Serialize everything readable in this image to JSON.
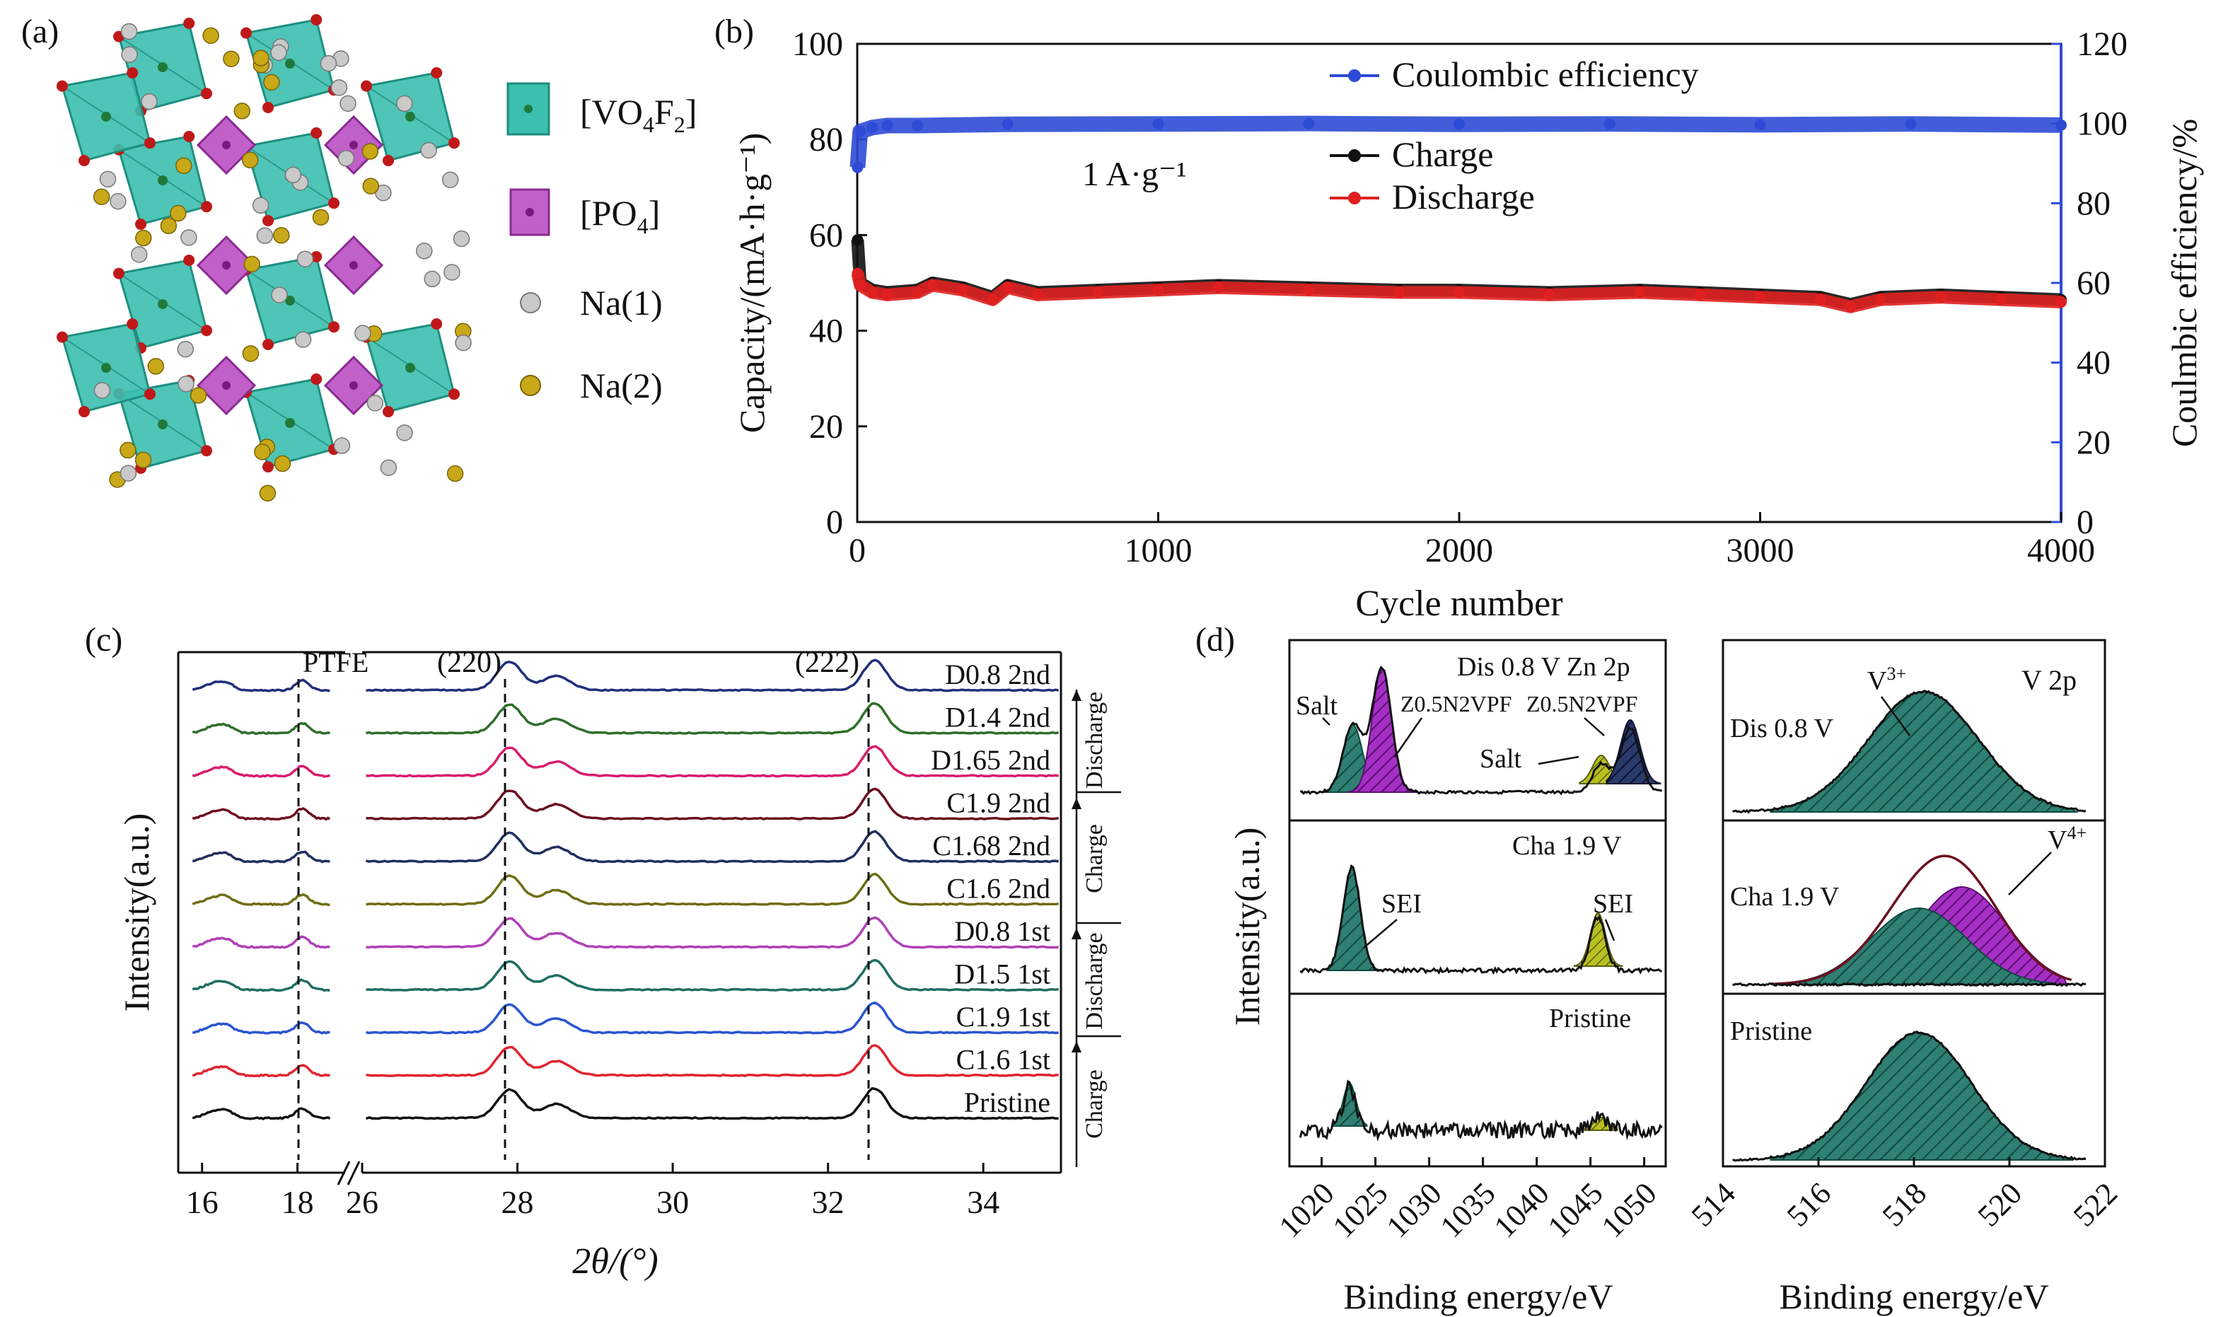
{
  "panels": {
    "a": "(a)",
    "b": "(b)",
    "c": "(c)",
    "d": "(d)"
  },
  "panel_a": {
    "legend": [
      {
        "label_main": "[VO",
        "sub1": "4",
        "mid": "F",
        "sub2": "2",
        "end": "]",
        "color": "#3bbfae"
      },
      {
        "label_main": "[PO",
        "sub1": "4",
        "mid": "",
        "sub2": "",
        "end": "]",
        "color": "#c060c8"
      },
      {
        "label_main": "Na(1)",
        "color": "#bdbdbd"
      },
      {
        "label_main": "Na(2)",
        "color": "#c8a818"
      }
    ]
  },
  "chart_data": [
    {
      "id": "b",
      "type": "line",
      "xlabel": "Cycle number",
      "ylabel_left": "Capacity/(mA·h·g⁻¹)",
      "ylabel_right": "Coulmbic efficiency/%",
      "xlim": [
        0,
        4000
      ],
      "ylim_left": [
        0,
        100
      ],
      "ylim_right": [
        0,
        120
      ],
      "xticks": [
        "0",
        "1000",
        "2000",
        "3000",
        "4000"
      ],
      "yticks_left": [
        "0",
        "20",
        "40",
        "60",
        "80",
        "100"
      ],
      "yticks_right": [
        "0",
        "20",
        "40",
        "60",
        "80",
        "100",
        "120"
      ],
      "annotation": "1 A·g⁻¹",
      "legend": [
        "Coulombic efficiency",
        "Charge",
        "Discharge"
      ],
      "colors": {
        "ce": "#2e4bd6",
        "charge": "#111111",
        "discharge": "#e02020"
      },
      "series": [
        {
          "name": "Coulombic efficiency",
          "axis": "right",
          "x": [
            1,
            10,
            50,
            100,
            200,
            500,
            1000,
            1500,
            2000,
            2500,
            3000,
            3500,
            4000
          ],
          "y": [
            89,
            98,
            99,
            99.5,
            99.5,
            99.8,
            99.9,
            100,
            99.8,
            99.9,
            99.7,
            99.9,
            99.6
          ]
        },
        {
          "name": "Charge",
          "axis": "left",
          "x": [
            1,
            10,
            50,
            100,
            200,
            250,
            350,
            450,
            500,
            600,
            800,
            1000,
            1200,
            1500,
            1800,
            2000,
            2300,
            2600,
            2800,
            3000,
            3200,
            3300,
            3400,
            3600,
            3800,
            4000
          ],
          "y": [
            59,
            50,
            48.5,
            48,
            48.5,
            50,
            49,
            47,
            49.5,
            48,
            48.5,
            49,
            49.5,
            49,
            48.5,
            48.5,
            48,
            48.5,
            48,
            47.5,
            47,
            45.5,
            47,
            47.5,
            47,
            46.5
          ]
        },
        {
          "name": "Discharge",
          "axis": "left",
          "x": [
            1,
            10,
            50,
            100,
            200,
            250,
            350,
            450,
            500,
            600,
            800,
            1000,
            1200,
            1500,
            1800,
            2000,
            2300,
            2600,
            2800,
            3000,
            3200,
            3300,
            3400,
            3600,
            3800,
            4000
          ],
          "y": [
            52,
            49.5,
            48,
            47.5,
            48,
            49.5,
            48.5,
            46.5,
            49,
            47.5,
            48,
            48.5,
            49,
            48.5,
            48,
            48,
            47.5,
            48,
            47.5,
            47,
            46.5,
            45,
            46.5,
            47,
            46.5,
            46
          ]
        }
      ]
    },
    {
      "id": "c",
      "type": "line",
      "xlabel": "2θ/(°)",
      "ylabel": "Intensity(a.u.)",
      "xticks_left": [
        "16",
        "18"
      ],
      "xticks_right": [
        "26",
        "28",
        "30",
        "32",
        "34"
      ],
      "xlim_left": [
        15.5,
        19
      ],
      "xlim_right": [
        26,
        35
      ],
      "peaks": [
        "16.2",
        "16.5",
        "18.1",
        "27.9",
        "28.5",
        "32.6"
      ],
      "annotations": [
        "PTFE",
        "(220)",
        "(222)"
      ],
      "brackets": [
        "Discharge",
        "Charge",
        "Discharge",
        "Charge"
      ],
      "series": [
        {
          "name": "D0.8 2nd",
          "color": "#1f2f7a"
        },
        {
          "name": "D1.4 2nd",
          "color": "#2f6e2a"
        },
        {
          "name": "D1.65 2nd",
          "color": "#d81c6a"
        },
        {
          "name": "C1.9 2nd",
          "color": "#6b1020"
        },
        {
          "name": "C1.68 2nd",
          "color": "#1f2f5e"
        },
        {
          "name": "C1.6 2nd",
          "color": "#6e6e16"
        },
        {
          "name": "D0.8 1st",
          "color": "#b040b8"
        },
        {
          "name": "D1.5 1st",
          "color": "#1f6e62"
        },
        {
          "name": "C1.9 1st",
          "color": "#2a55d0"
        },
        {
          "name": "C1.6 1st",
          "color": "#e02430"
        },
        {
          "name": "Pristine",
          "color": "#111111"
        }
      ]
    },
    {
      "id": "d-zn",
      "type": "line",
      "xlabel": "Binding energy/eV",
      "ylabel": "Intensity(a.u.)",
      "xlim": [
        1017,
        1052
      ],
      "xticks": [
        "1020",
        "1025",
        "1030",
        "1035",
        "1040",
        "1045",
        "1050"
      ],
      "rows": [
        {
          "label": "Dis 0.8 V Zn 2p",
          "annotations": [
            "Salt",
            "Z0.5N2VPF",
            "Z0.5N2VPF",
            "Salt"
          ]
        },
        {
          "label": "Cha 1.9 V",
          "annotations": [
            "SEI",
            "SEI"
          ]
        },
        {
          "label": "Pristine",
          "annotations": []
        }
      ]
    },
    {
      "id": "d-v",
      "type": "line",
      "xlabel": "Binding energy/eV",
      "xlim": [
        514,
        522
      ],
      "xticks": [
        "514",
        "516",
        "518",
        "520",
        "522"
      ],
      "rows": [
        {
          "label": "Dis 0.8 V",
          "annotations": [
            "V3+",
            "V 2p"
          ]
        },
        {
          "label": "Cha 1.9 V",
          "annotations": [
            "V4+"
          ]
        },
        {
          "label": "Pristine",
          "annotations": []
        }
      ]
    }
  ]
}
